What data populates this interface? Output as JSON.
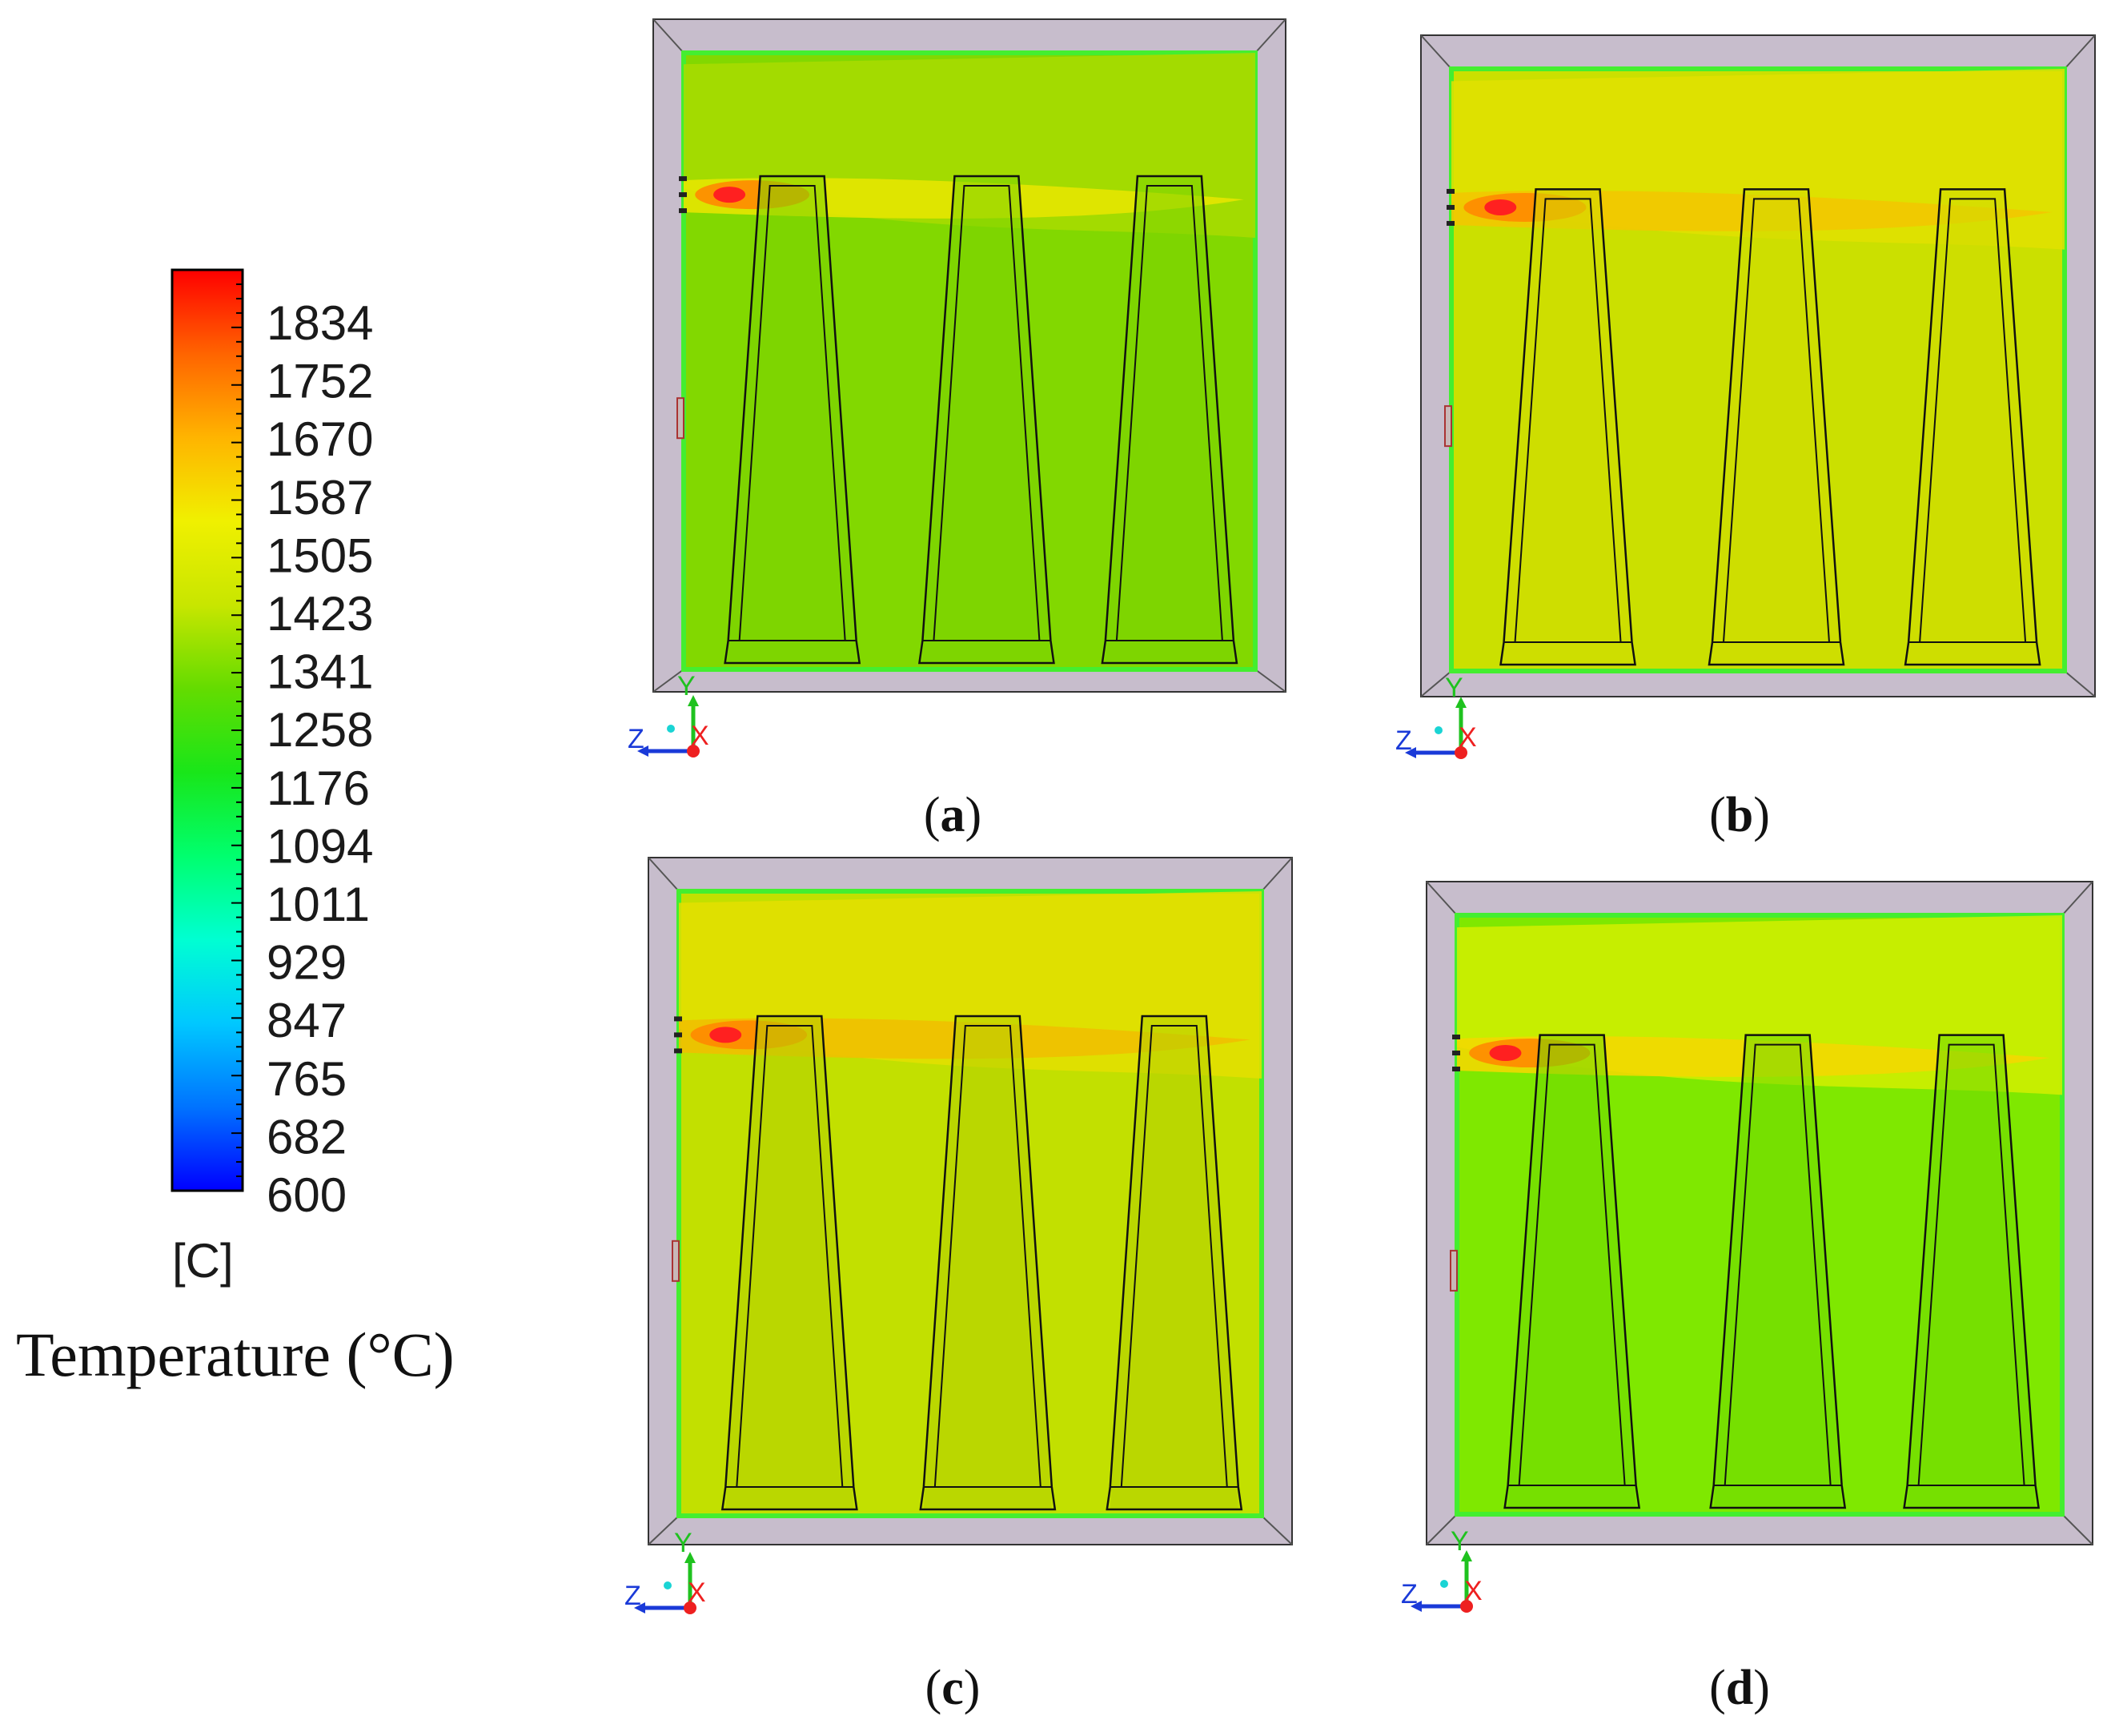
{
  "colorbar": {
    "ticks": [
      "1834",
      "1752",
      "1670",
      "1587",
      "1505",
      "1423",
      "1341",
      "1258",
      "1176",
      "1094",
      "1011",
      "929",
      "847",
      "765",
      "682",
      "600"
    ],
    "unit": "[C]",
    "title": "Temperature (°C)",
    "range": [
      600,
      1916
    ],
    "colors": [
      "#0000ff",
      "#0073ff",
      "#00c8ff",
      "#00ffd2",
      "#00ff6e",
      "#19e619",
      "#64dc00",
      "#c8e600",
      "#f0f000",
      "#ffb400",
      "#ff6400",
      "#ff0000"
    ]
  },
  "axis_labels": {
    "y": "Y",
    "z": "Z",
    "x": "X"
  },
  "panels": [
    {
      "id": "a",
      "caption_open": "(",
      "caption_letter": "a",
      "caption_close": ")",
      "bg_color": "#82d800",
      "top_band": "#a9dc00",
      "flame_band": "#e6e600",
      "flame_core": "#ff2020",
      "brick_fill": "#7cd400"
    },
    {
      "id": "b",
      "caption_open": "(",
      "caption_letter": "b",
      "caption_close": ")",
      "bg_color": "#cbe000",
      "top_band": "#e2e000",
      "flame_band": "#f2c800",
      "flame_core": "#ff2020",
      "brick_fill": "#d2dc00"
    },
    {
      "id": "c",
      "caption_open": "(",
      "caption_letter": "c",
      "caption_close": ")",
      "bg_color": "#c2e000",
      "top_band": "#e4df00",
      "flame_band": "#f0c000",
      "flame_core": "#ff2020",
      "brick_fill": "#b5cf00"
    },
    {
      "id": "d",
      "caption_open": "(",
      "caption_letter": "d",
      "caption_close": ")",
      "bg_color": "#7fe800",
      "top_band": "#d2ee00",
      "flame_band": "#f2d800",
      "flame_core": "#ff2020",
      "brick_fill": "#70d800"
    }
  ]
}
